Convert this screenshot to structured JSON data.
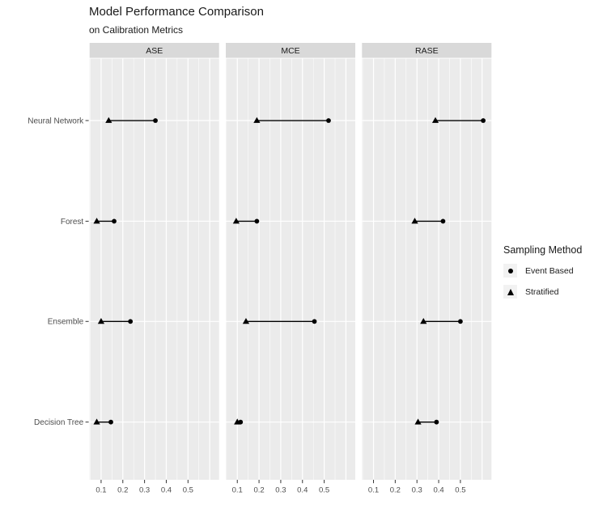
{
  "title": "Model Performance Comparison",
  "subtitle": "on Calibration Metrics",
  "legend": {
    "title": "Sampling Method",
    "items": [
      {
        "label": "Event Based",
        "marker": "circle"
      },
      {
        "label": "Stratified",
        "marker": "triangle"
      }
    ]
  },
  "colors": {
    "panel_bg": "#EBEBEB",
    "strip_bg": "#D9D9D9",
    "grid": "#FFFFFF",
    "marker": "#000000",
    "axis_text": "#4D4D4D",
    "tick": "#333333",
    "title_text": "#1A1A1A",
    "legend_key_bg": "#F2F2F2"
  },
  "chart_data": {
    "type": "scatter",
    "subtype": "faceted dumbbell (Cleveland dot plot) with connecting segments",
    "title": "Model Performance Comparison",
    "subtitle": "on Calibration Metrics",
    "facets": [
      "ASE",
      "MCE",
      "RASE"
    ],
    "categories": [
      "Neural Network",
      "Forest",
      "Ensemble",
      "Decision Tree"
    ],
    "series": [
      {
        "name": "Event Based",
        "marker": "circle",
        "values": {
          "ASE": [
            0.35,
            0.16,
            0.235,
            0.145
          ],
          "MCE": [
            0.52,
            0.19,
            0.455,
            0.115
          ],
          "RASE": [
            0.605,
            0.42,
            0.5,
            0.39
          ]
        }
      },
      {
        "name": "Stratified",
        "marker": "triangle",
        "values": {
          "ASE": [
            0.135,
            0.08,
            0.1,
            0.08
          ],
          "MCE": [
            0.19,
            0.095,
            0.14,
            0.1
          ],
          "RASE": [
            0.385,
            0.29,
            0.33,
            0.305
          ]
        }
      }
    ],
    "x_ticks": [
      "0.1",
      "0.2",
      "0.3",
      "0.4",
      "0.5"
    ],
    "x_tick_values": [
      0.1,
      0.2,
      0.3,
      0.4,
      0.5
    ],
    "xlim": [
      0.047,
      0.643
    ],
    "ylabel": "",
    "xlabel": "",
    "grid": "white on gray panels, vertical majors at 0.1 steps, minors at 0.05 steps, horizontal majors at each category",
    "legend_position": "right",
    "connectors": true
  }
}
